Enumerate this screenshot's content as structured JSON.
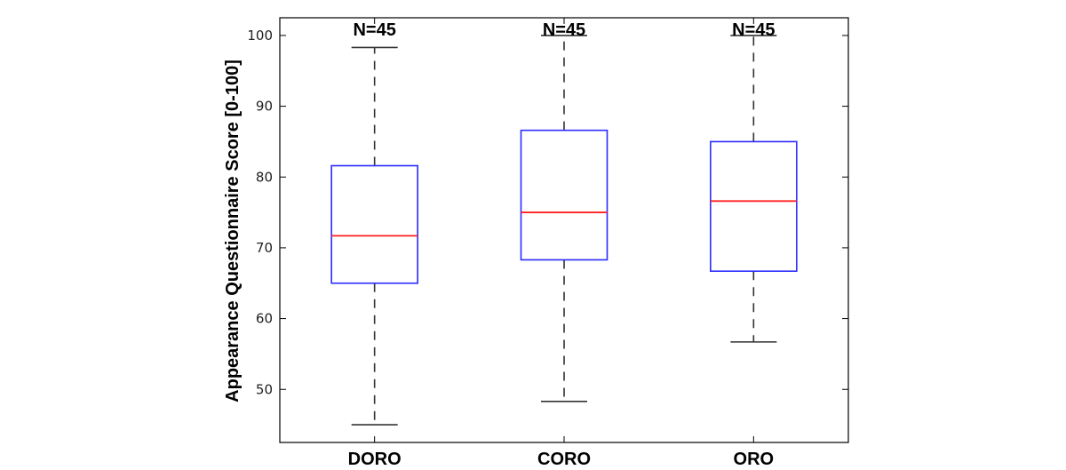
{
  "chart_data": {
    "type": "box",
    "title": "",
    "xlabel": "",
    "ylabel": "Appearance Questionnaire Score [0-100]",
    "ylim": [
      42.5,
      102.5
    ],
    "yticks": [
      50,
      60,
      70,
      80,
      90,
      100
    ],
    "grid": false,
    "categories": [
      "DORO",
      "CORO",
      "ORO"
    ],
    "n_labels": [
      "N=45",
      "N=45",
      "N=45"
    ],
    "boxes": [
      {
        "name": "DORO",
        "whisker_low": 45.0,
        "q1": 65.0,
        "median": 71.7,
        "q3": 81.6,
        "whisker_high": 98.3
      },
      {
        "name": "CORO",
        "whisker_low": 48.3,
        "q1": 68.3,
        "median": 75.0,
        "q3": 86.6,
        "whisker_high": 100.0
      },
      {
        "name": "ORO",
        "whisker_low": 56.7,
        "q1": 66.7,
        "median": 76.6,
        "q3": 85.0,
        "whisker_high": 100.0
      }
    ],
    "colors": {
      "box": "#2b2bff",
      "median": "#ff2020",
      "whisker": "#333333",
      "axis": "#000000"
    }
  }
}
